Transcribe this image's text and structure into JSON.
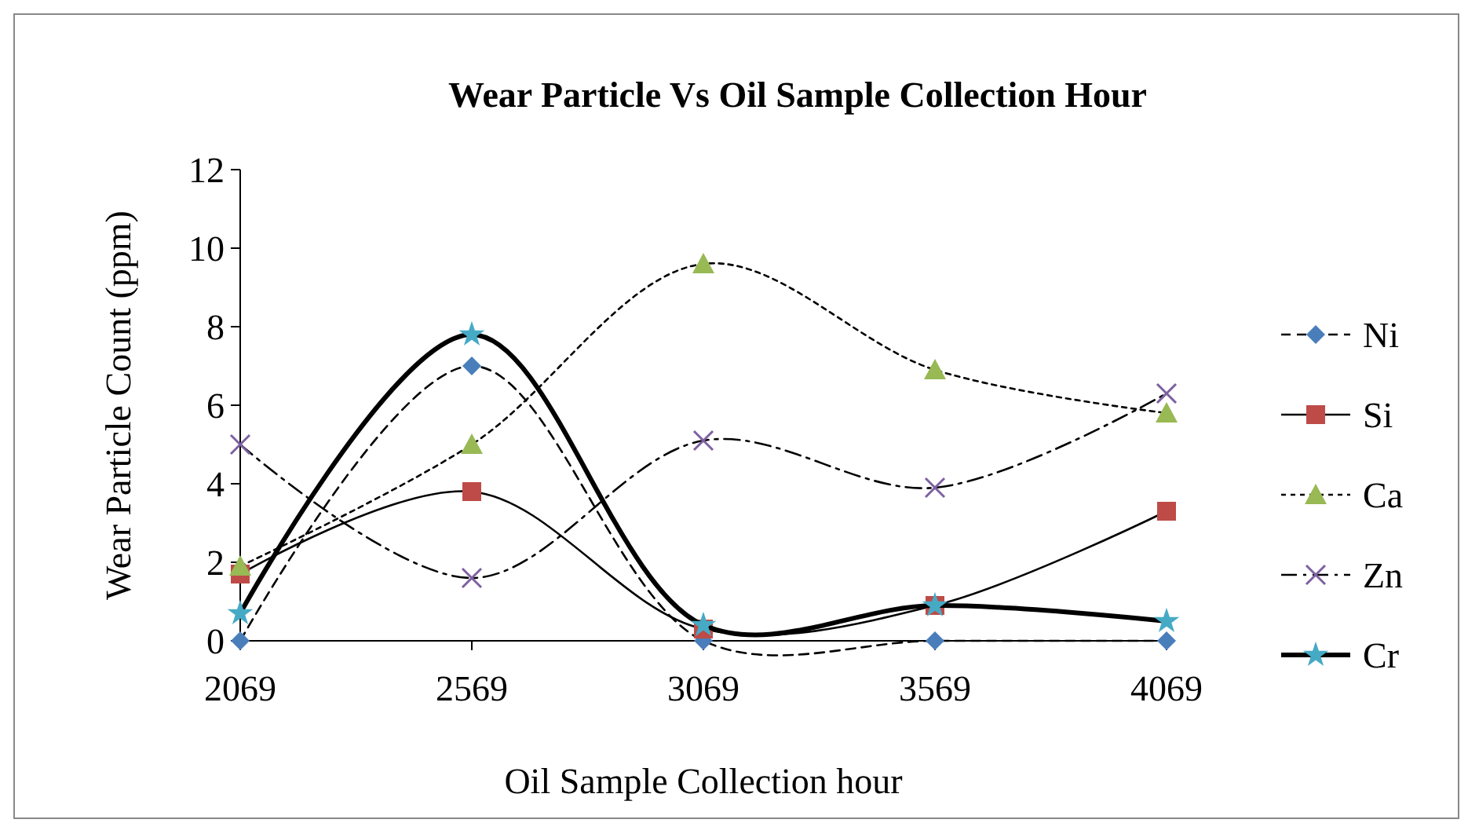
{
  "chart_data": {
    "type": "line",
    "title": "Wear Particle  Vs Oil Sample  Collection Hour",
    "xlabel": "Oil Sample  Collection  hour",
    "ylabel": "Wear Particle  Count  (ppm)",
    "categories": [
      "2069",
      "2569",
      "3069",
      "3569",
      "4069"
    ],
    "series": [
      {
        "name": "Ni",
        "color": "#4a7ebb",
        "marker": "diamond",
        "line_style": "dashed",
        "values": [
          0,
          7.0,
          0,
          0,
          0
        ]
      },
      {
        "name": "Si",
        "color": "#be4b48",
        "marker": "square",
        "line_style": "solid",
        "values": [
          1.7,
          3.8,
          0.3,
          0.9,
          3.3
        ]
      },
      {
        "name": "Ca",
        "color": "#98b954",
        "marker": "triangle",
        "line_style": "dotted",
        "values": [
          1.9,
          5.0,
          9.6,
          6.9,
          5.8
        ]
      },
      {
        "name": "Zn",
        "color": "#7d60a0",
        "marker": "cross",
        "line_style": "dashdot",
        "values": [
          5.0,
          1.6,
          5.1,
          3.9,
          6.3
        ]
      },
      {
        "name": "Cr",
        "color": "#46aac5",
        "marker": "star",
        "line_style": "solid",
        "values": [
          0.7,
          7.8,
          0.4,
          0.9,
          0.5
        ]
      }
    ],
    "ylim": [
      0,
      12
    ],
    "yticks": [
      0,
      2,
      4,
      6,
      8,
      10,
      12
    ],
    "grid": false,
    "legend": "right"
  }
}
